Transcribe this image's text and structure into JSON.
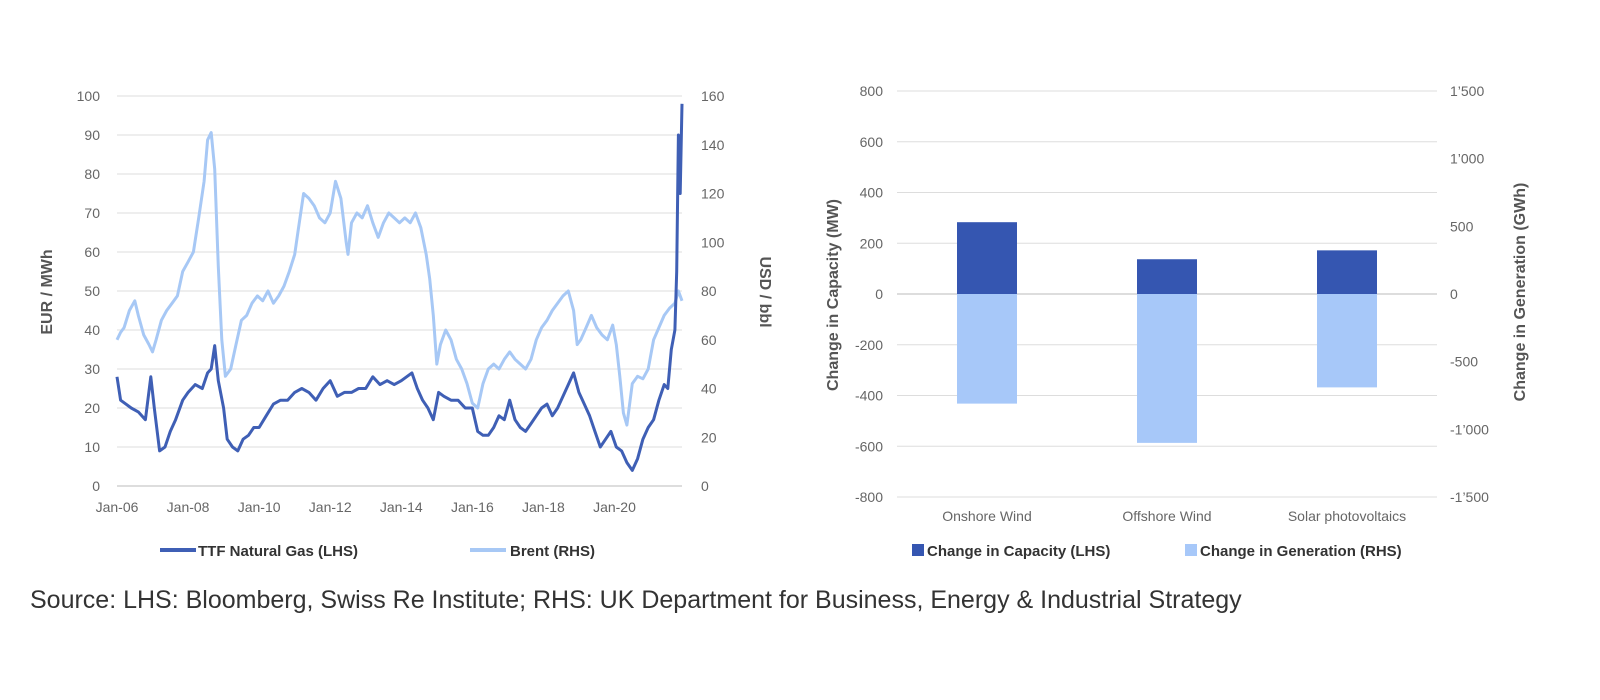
{
  "source": "Source: LHS: Bloomberg, Swiss Re Institute; RHS: UK Department for Business, Energy & Industrial Strategy",
  "chart_data": [
    {
      "type": "line",
      "title": "",
      "ylabel": "EUR / MWh",
      "y2label": "USD / bbl",
      "ylim": [
        0,
        100
      ],
      "yticks": [
        0,
        10,
        20,
        30,
        40,
        50,
        60,
        70,
        80,
        90,
        100
      ],
      "y2lim": [
        0,
        160
      ],
      "y2ticks": [
        0,
        20,
        40,
        60,
        80,
        100,
        120,
        140,
        160
      ],
      "xlim": [
        2006.0,
        2021.9
      ],
      "xtick_labels": [
        "Jan-06",
        "Jan-08",
        "Jan-10",
        "Jan-12",
        "Jan-14",
        "Jan-16",
        "Jan-18",
        "Jan-20"
      ],
      "xtick_values": [
        2006,
        2008,
        2010,
        2012,
        2014,
        2016,
        2018,
        2020
      ],
      "grid": true,
      "legend": "bottom",
      "series": [
        {
          "name": "TTF Natural Gas (LHS)",
          "axis": "left",
          "color": "#3f5fb5",
          "x": [
            2006.0,
            2006.1,
            2006.25,
            2006.4,
            2006.6,
            2006.8,
            2006.95,
            2007.05,
            2007.2,
            2007.35,
            2007.5,
            2007.65,
            2007.85,
            2008.0,
            2008.2,
            2008.4,
            2008.55,
            2008.65,
            2008.75,
            2008.85,
            2009.0,
            2009.1,
            2009.25,
            2009.4,
            2009.55,
            2009.7,
            2009.85,
            2010.0,
            2010.2,
            2010.4,
            2010.6,
            2010.8,
            2011.0,
            2011.2,
            2011.4,
            2011.6,
            2011.8,
            2012.0,
            2012.2,
            2012.4,
            2012.6,
            2012.8,
            2013.0,
            2013.2,
            2013.4,
            2013.6,
            2013.8,
            2014.0,
            2014.15,
            2014.3,
            2014.45,
            2014.6,
            2014.75,
            2014.9,
            2015.05,
            2015.2,
            2015.4,
            2015.6,
            2015.8,
            2016.0,
            2016.15,
            2016.3,
            2016.45,
            2016.6,
            2016.75,
            2016.9,
            2017.05,
            2017.2,
            2017.35,
            2017.5,
            2017.65,
            2017.8,
            2017.95,
            2018.1,
            2018.25,
            2018.4,
            2018.55,
            2018.7,
            2018.85,
            2019.0,
            2019.15,
            2019.3,
            2019.45,
            2019.6,
            2019.75,
            2019.9,
            2020.05,
            2020.2,
            2020.35,
            2020.5,
            2020.65,
            2020.8,
            2020.95,
            2021.1,
            2021.25,
            2021.4,
            2021.5,
            2021.6,
            2021.7,
            2021.75,
            2021.8,
            2021.85,
            2021.9
          ],
          "y": [
            28,
            22,
            21,
            20,
            19,
            17,
            28,
            20,
            9,
            10,
            14,
            17,
            22,
            24,
            26,
            25,
            29,
            30,
            36,
            27,
            20,
            12,
            10,
            9,
            12,
            13,
            15,
            15,
            18,
            21,
            22,
            22,
            24,
            25,
            24,
            22,
            25,
            27,
            23,
            24,
            24,
            25,
            25,
            28,
            26,
            27,
            26,
            27,
            28,
            29,
            25,
            22,
            20,
            17,
            24,
            23,
            22,
            22,
            20,
            20,
            14,
            13,
            13,
            15,
            18,
            17,
            22,
            17,
            15,
            14,
            16,
            18,
            20,
            21,
            18,
            20,
            23,
            26,
            29,
            24,
            21,
            18,
            14,
            10,
            12,
            14,
            10,
            9,
            6,
            4,
            7,
            12,
            15,
            17,
            22,
            26,
            25,
            35,
            40,
            55,
            90,
            75,
            98
          ]
        },
        {
          "name": "Brent (RHS)",
          "axis": "right",
          "color": "#a7c8f5",
          "x": [
            2006.0,
            2006.1,
            2006.2,
            2006.35,
            2006.5,
            2006.6,
            2006.75,
            2006.9,
            2007.0,
            2007.1,
            2007.25,
            2007.4,
            2007.55,
            2007.7,
            2007.85,
            2008.0,
            2008.15,
            2008.3,
            2008.45,
            2008.55,
            2008.65,
            2008.75,
            2008.85,
            2008.95,
            2009.05,
            2009.2,
            2009.35,
            2009.5,
            2009.65,
            2009.8,
            2009.95,
            2010.1,
            2010.25,
            2010.4,
            2010.55,
            2010.7,
            2010.85,
            2011.0,
            2011.1,
            2011.25,
            2011.4,
            2011.55,
            2011.7,
            2011.85,
            2012.0,
            2012.15,
            2012.3,
            2012.45,
            2012.5,
            2012.6,
            2012.75,
            2012.9,
            2013.05,
            2013.2,
            2013.35,
            2013.5,
            2013.65,
            2013.8,
            2013.95,
            2014.1,
            2014.25,
            2014.4,
            2014.55,
            2014.7,
            2014.8,
            2014.9,
            2015.0,
            2015.1,
            2015.25,
            2015.4,
            2015.55,
            2015.7,
            2015.85,
            2016.0,
            2016.15,
            2016.3,
            2016.45,
            2016.6,
            2016.75,
            2016.9,
            2017.05,
            2017.2,
            2017.35,
            2017.5,
            2017.65,
            2017.8,
            2017.95,
            2018.1,
            2018.25,
            2018.4,
            2018.55,
            2018.7,
            2018.85,
            2018.95,
            2019.05,
            2019.2,
            2019.35,
            2019.5,
            2019.65,
            2019.8,
            2019.95,
            2020.05,
            2020.15,
            2020.25,
            2020.35,
            2020.5,
            2020.65,
            2020.8,
            2020.95,
            2021.1,
            2021.25,
            2021.4,
            2021.55,
            2021.7,
            2021.8,
            2021.9
          ],
          "y": [
            60,
            63,
            65,
            72,
            76,
            70,
            62,
            58,
            55,
            60,
            68,
            72,
            75,
            78,
            88,
            92,
            96,
            110,
            125,
            142,
            145,
            130,
            90,
            60,
            45,
            48,
            58,
            68,
            70,
            75,
            78,
            76,
            80,
            75,
            78,
            82,
            88,
            95,
            105,
            120,
            118,
            115,
            110,
            108,
            112,
            125,
            118,
            100,
            95,
            108,
            112,
            110,
            115,
            108,
            102,
            108,
            112,
            110,
            108,
            110,
            108,
            112,
            106,
            95,
            85,
            70,
            50,
            58,
            64,
            60,
            52,
            48,
            42,
            34,
            32,
            42,
            48,
            50,
            48,
            52,
            55,
            52,
            50,
            48,
            52,
            60,
            65,
            68,
            72,
            75,
            78,
            80,
            72,
            58,
            60,
            65,
            70,
            65,
            62,
            60,
            66,
            58,
            45,
            30,
            25,
            42,
            45,
            44,
            48,
            60,
            65,
            70,
            73,
            75,
            80,
            76
          ]
        }
      ]
    },
    {
      "type": "bar",
      "title": "",
      "ylabel": "Change in Capacity (MW)",
      "y2label": "Change in Generation (GWh)",
      "ylim": [
        -800,
        800
      ],
      "yticks": [
        -800,
        -600,
        -400,
        -200,
        0,
        200,
        400,
        600,
        800
      ],
      "ytick_labels": [
        "-800",
        "-600",
        "-400",
        "-200",
        "0",
        "200",
        "400",
        "600",
        "800"
      ],
      "y2lim": [
        -1500,
        1500
      ],
      "y2ticks": [
        -1500,
        -1000,
        -500,
        0,
        500,
        1000,
        1500
      ],
      "y2tick_labels": [
        "-1’500",
        "-1’000",
        "-500",
        "0",
        "500",
        "1’000",
        "1’500"
      ],
      "categories": [
        "Onshore Wind",
        "Offshore Wind",
        "Solar photovoltaics"
      ],
      "grid": true,
      "legend": "bottom",
      "series": [
        {
          "name": "Change in Capacity (LHS)",
          "axis": "left",
          "color": "#3556b1",
          "values": [
            283,
            137,
            172
          ]
        },
        {
          "name": "Change in Generation (RHS)",
          "axis": "right",
          "color": "#a7c8f9",
          "values": [
            -810,
            -1100,
            -690
          ]
        }
      ]
    }
  ]
}
